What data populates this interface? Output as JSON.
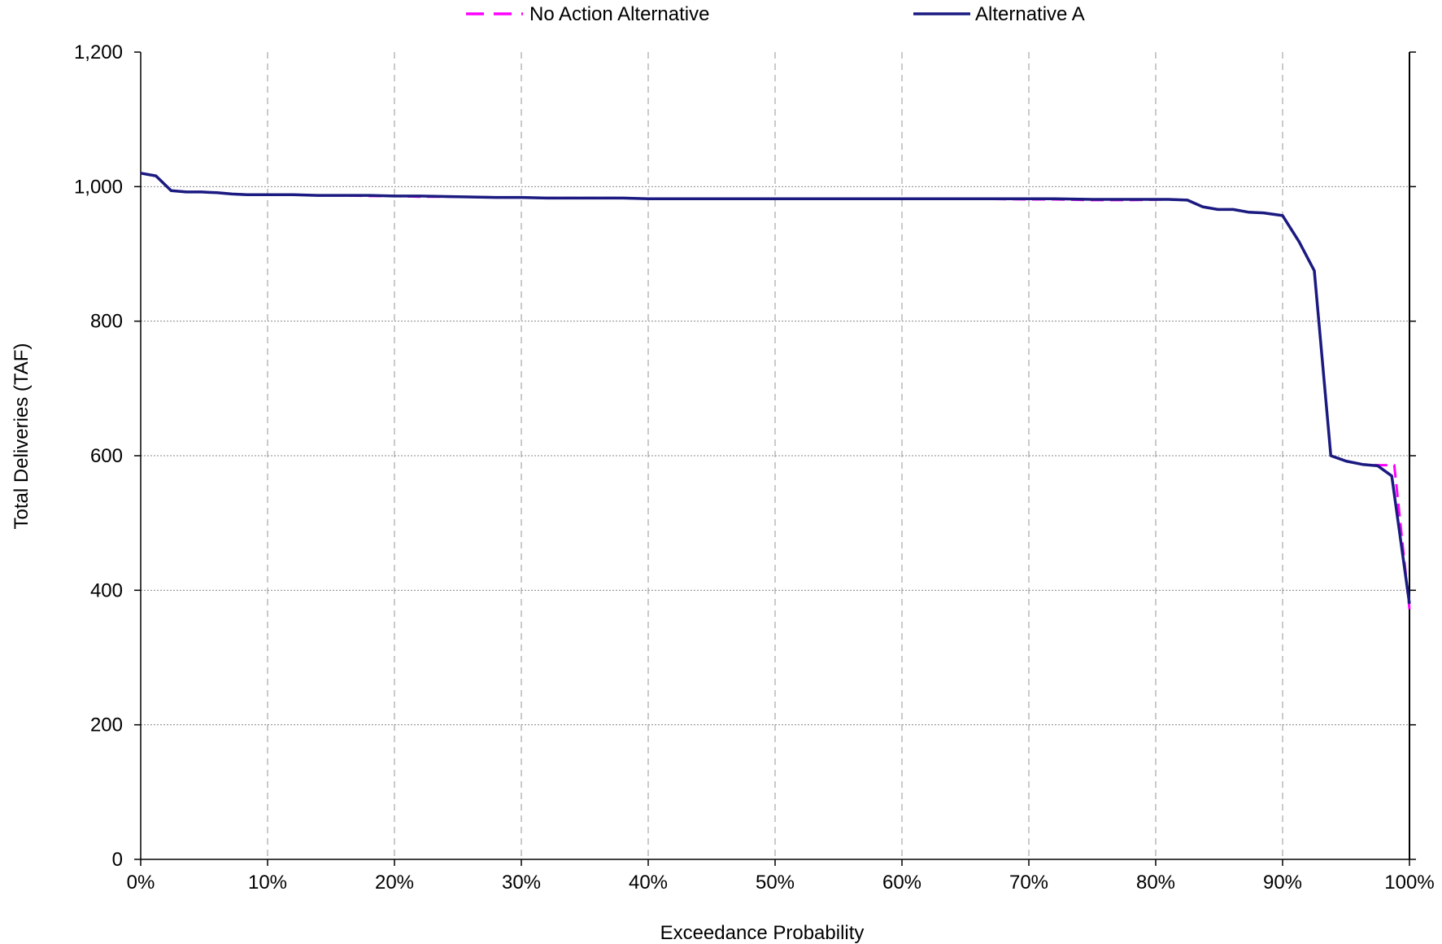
{
  "chart_data": {
    "type": "line",
    "title": "",
    "xlabel": "Exceedance Probability",
    "ylabel": "Total Deliveries (TAF)",
    "xlim": [
      0,
      100
    ],
    "ylim": [
      0,
      1200
    ],
    "x_ticks": [
      0,
      10,
      20,
      30,
      40,
      50,
      60,
      70,
      80,
      90,
      100
    ],
    "x_tick_labels": [
      "0%",
      "10%",
      "20%",
      "30%",
      "40%",
      "50%",
      "60%",
      "70%",
      "80%",
      "90%",
      "100%"
    ],
    "y_ticks": [
      0,
      200,
      400,
      600,
      800,
      1000,
      1200
    ],
    "y_tick_labels": [
      "0",
      "200",
      "400",
      "600",
      "800",
      "1,000",
      "1,200"
    ],
    "grid": {
      "x": "dashed-vertical",
      "y": "dotted-horizontal"
    },
    "legend_position": "top",
    "series": [
      {
        "name": "No Action Alternative",
        "color": "#ff00ff",
        "line_style": "dashed",
        "x": [
          0,
          1.2,
          2.4,
          3.6,
          4.8,
          6,
          7.2,
          8.4,
          10,
          12,
          14,
          16,
          18,
          20,
          22,
          25,
          28,
          30,
          32,
          34,
          36,
          38,
          40,
          45,
          50,
          55,
          60,
          65,
          70,
          72,
          75,
          78,
          81,
          82.5,
          83.7,
          84.9,
          86.1,
          87.3,
          88.5,
          90,
          91.3,
          92.5,
          93.8,
          95,
          96.3,
          97.5,
          98.8,
          100
        ],
        "values": [
          1020,
          1016,
          994,
          992,
          992,
          991,
          989,
          988,
          988,
          988,
          987,
          987,
          986,
          986,
          985,
          985,
          984,
          984,
          983,
          983,
          983,
          983,
          982,
          982,
          982,
          982,
          982,
          982,
          981,
          981,
          980,
          980,
          981,
          980,
          970,
          966,
          966,
          962,
          961,
          957,
          918,
          875,
          600,
          592,
          587,
          586,
          586,
          372
        ]
      },
      {
        "name": "Alternative A",
        "color": "#1a1a80",
        "line_style": "solid",
        "x": [
          0,
          1.2,
          2.4,
          3.6,
          4.8,
          6,
          7.2,
          8.4,
          10,
          12,
          14,
          16,
          18,
          20,
          22,
          25,
          28,
          30,
          32,
          34,
          36,
          38,
          40,
          45,
          50,
          55,
          60,
          65,
          70,
          72,
          75,
          78,
          81,
          82.5,
          83.7,
          84.9,
          86.1,
          87.3,
          88.5,
          90,
          91.3,
          92.5,
          93.8,
          95,
          96.3,
          97.5,
          98.6,
          100
        ],
        "values": [
          1020,
          1016,
          994,
          992,
          992,
          991,
          989,
          988,
          988,
          988,
          987,
          987,
          987,
          986,
          986,
          985,
          984,
          984,
          983,
          983,
          983,
          983,
          982,
          982,
          982,
          982,
          982,
          982,
          982,
          982,
          981,
          981,
          981,
          980,
          970,
          966,
          966,
          962,
          961,
          957,
          918,
          875,
          600,
          592,
          587,
          585,
          570,
          380
        ]
      }
    ]
  }
}
